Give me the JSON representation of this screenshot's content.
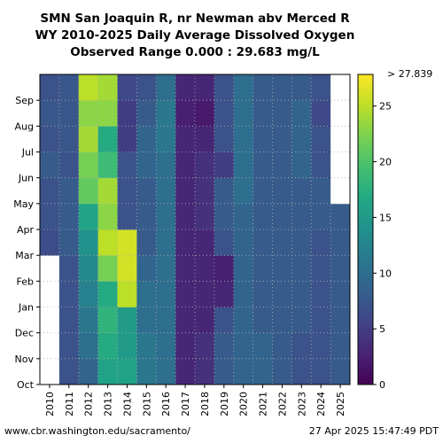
{
  "chart_data": {
    "type": "heatmap",
    "title_lines": [
      "SMN San Joaquin R, nr Newman abv Merced R",
      "WY 2010-2025 Daily Average Dissolved Oxygen",
      "Observed Range 0.000 : 29.683 mg/L"
    ],
    "x_categories": [
      "2010",
      "2011",
      "2012",
      "2013",
      "2014",
      "2015",
      "2016",
      "2017",
      "2018",
      "2019",
      "2020",
      "2021",
      "2022",
      "2023",
      "2024",
      "2025"
    ],
    "y_categories": [
      "Oct",
      "Nov",
      "Dec",
      "Jan",
      "Feb",
      "Mar",
      "Apr",
      "May",
      "Jun",
      "Jul",
      "Aug",
      "Sep"
    ],
    "colorbar": {
      "min": 0,
      "max": 27.839,
      "ticks": [
        "0",
        "5",
        "10",
        "15",
        "20",
        "25"
      ],
      "tick_values": [
        0,
        5,
        10,
        15,
        20,
        25
      ],
      "max_label": "> 27.839",
      "colormap": "viridis"
    },
    "monthly_values": {
      "2010": [
        null,
        null,
        null,
        null,
        null,
        6.5,
        7,
        7,
        8,
        7,
        7.5,
        7
      ],
      "2011": [
        7,
        7,
        7,
        7,
        7,
        8,
        8,
        8,
        7,
        7.5,
        7.5,
        7.5
      ],
      "2012": [
        9,
        10,
        11,
        12,
        13,
        14,
        16,
        21,
        22,
        24,
        23,
        25
      ],
      "2013": [
        16,
        17,
        18,
        17,
        22,
        25,
        23,
        24,
        19,
        17,
        23,
        24
      ],
      "2014": [
        16,
        15,
        15,
        25,
        26,
        26,
        7,
        7,
        7,
        5,
        5,
        6
      ],
      "2015": [
        11,
        11,
        10,
        10,
        9,
        8,
        8,
        8,
        9,
        9,
        8,
        7
      ],
      "2016": [
        10,
        10,
        10,
        10,
        10,
        10,
        10,
        10,
        10,
        11,
        11,
        10
      ],
      "2017": [
        3,
        3,
        3,
        3,
        3,
        3,
        3,
        3,
        3,
        3,
        2.5,
        3
      ],
      "2018": [
        4,
        4,
        3,
        3,
        3,
        3,
        4,
        4,
        4,
        3,
        2,
        3
      ],
      "2019": [
        8,
        8,
        7,
        3,
        2.5,
        7,
        8,
        8,
        5,
        7,
        7,
        7
      ],
      "2020": [
        9,
        9,
        9,
        9,
        9,
        9,
        9,
        10,
        10,
        10,
        10,
        10
      ],
      "2021": [
        9,
        9,
        8,
        8,
        8,
        8,
        8,
        8,
        8,
        8,
        8,
        8
      ],
      "2022": [
        8,
        8,
        8,
        8,
        8,
        8,
        8,
        8,
        8,
        8,
        8,
        8
      ],
      "2023": [
        7,
        7,
        8,
        8,
        8,
        8,
        8,
        8,
        9,
        9,
        9,
        8
      ],
      "2024": [
        7,
        7,
        7,
        7,
        7,
        7,
        8,
        8,
        7,
        7,
        6,
        7
      ],
      "2025": [
        8,
        8,
        8,
        8,
        8,
        8,
        8,
        null,
        null,
        null,
        null,
        null
      ]
    },
    "grid": true
  },
  "footer": {
    "url": "www.cbr.washington.edu/sacramento/",
    "timestamp": "27 Apr 2025 15:47:49 PDT"
  }
}
